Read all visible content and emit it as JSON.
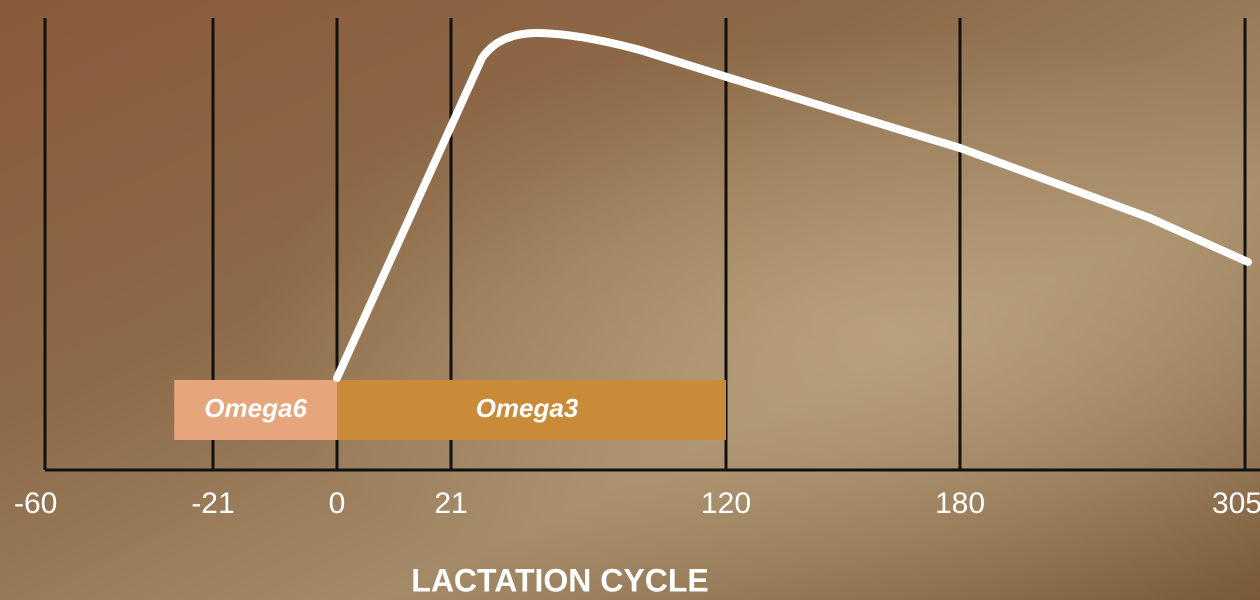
{
  "chart_data": {
    "type": "band",
    "xlabel": "LACTATION CYCLE",
    "xticks": [
      -60,
      -21,
      0,
      21,
      120,
      180,
      305
    ],
    "bands": [
      {
        "name": "Omega6",
        "start": -30,
        "end": 0,
        "color": "#e6a57a"
      },
      {
        "name": "Omega3",
        "start": 0,
        "end": 120,
        "color": "#c98b38"
      }
    ]
  }
}
